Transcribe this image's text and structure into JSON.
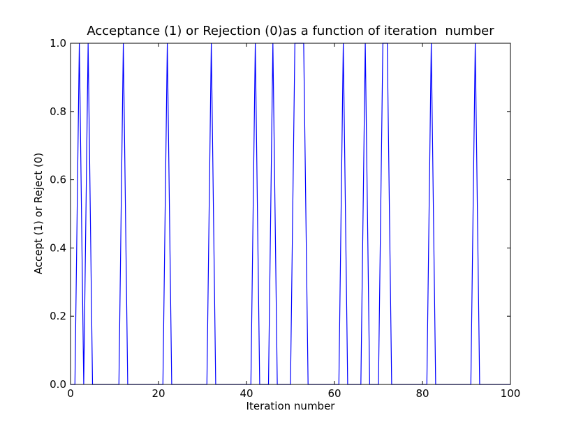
{
  "chart_data": {
    "type": "line",
    "title": "Acceptance (1) or Rejection (0)as a function of iteration  number",
    "x_label": "Iteration number",
    "y_label": "Accept (1) or Reject (0)",
    "x": [
      0,
      1,
      2,
      3,
      4,
      5,
      6,
      7,
      8,
      9,
      10,
      11,
      12,
      13,
      14,
      15,
      16,
      17,
      18,
      19,
      20,
      21,
      22,
      23,
      24,
      25,
      26,
      27,
      28,
      29,
      30,
      31,
      32,
      33,
      34,
      35,
      36,
      37,
      38,
      39,
      40,
      41,
      42,
      43,
      44,
      45,
      46,
      47,
      48,
      49,
      50,
      51,
      52,
      53,
      54,
      55,
      56,
      57,
      58,
      59,
      60,
      61,
      62,
      63,
      64,
      65,
      66,
      67,
      68,
      69,
      70,
      71,
      72,
      73,
      74,
      75,
      76,
      77,
      78,
      79,
      80,
      81,
      82,
      83,
      84,
      85,
      86,
      87,
      88,
      89,
      90,
      91,
      92,
      93,
      94,
      95,
      96,
      97,
      98,
      99,
      100
    ],
    "series": [
      {
        "color": "#0000ff",
        "values": [
          0,
          0,
          1,
          0,
          1,
          0,
          0,
          0,
          0,
          0,
          0,
          0,
          1,
          0,
          0,
          0,
          0,
          0,
          0,
          0,
          0,
          0,
          1,
          0,
          0,
          0,
          0,
          0,
          0,
          0,
          0,
          0,
          1,
          0,
          0,
          0,
          0,
          0,
          0,
          0,
          0,
          0,
          1,
          0,
          0,
          0,
          1,
          0,
          0,
          0,
          0,
          1,
          1,
          1,
          0,
          0,
          0,
          0,
          0,
          0,
          0,
          0,
          1,
          0,
          0,
          0,
          0,
          1,
          0,
          0,
          0,
          1,
          1,
          0,
          0,
          0,
          0,
          0,
          0,
          0,
          0,
          0,
          1,
          0,
          0,
          0,
          0,
          0,
          0,
          0,
          0,
          0,
          1,
          0,
          0,
          0,
          0,
          0,
          0,
          0,
          0
        ]
      }
    ],
    "xlim": [
      0,
      100
    ],
    "xticks": [
      0,
      20,
      40,
      60,
      80,
      100
    ],
    "ylim": [
      0,
      1
    ],
    "yticks": [
      {
        "value": 0,
        "label": "0.0"
      },
      0.2,
      0.4,
      0.6,
      0.8,
      {
        "value": 1,
        "label": "1.0"
      }
    ],
    "grid": false
  }
}
